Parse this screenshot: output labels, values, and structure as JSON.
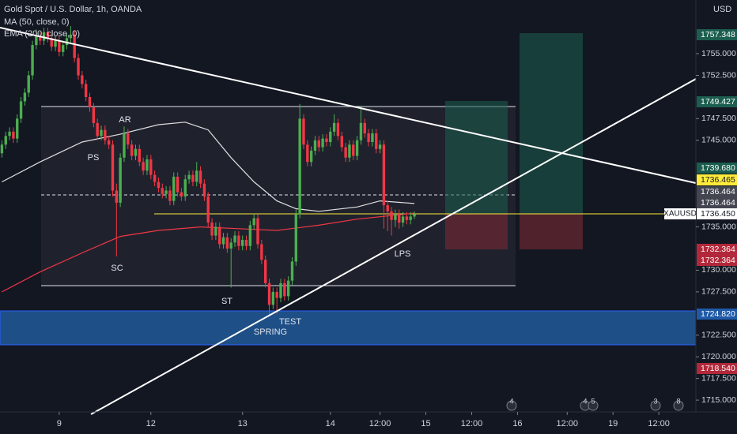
{
  "chart_data": {
    "type": "candlestick",
    "title": "Gold Spot / U.S. Dollar, 1h, OANDA",
    "indicators": [
      "MA (50, close, 0)",
      "EMA (200, close, 0)"
    ],
    "symbol_tag": "XAUUSD",
    "currency": "USD",
    "colors": {
      "up": "#4caf50",
      "down": "#f23645"
    },
    "candles": {
      "open": [
        1743.5,
        1744.5,
        1745.5,
        1746.0,
        1745.2,
        1747.5,
        1749.5,
        1750.5,
        1752.5,
        1756.0,
        1757.0,
        1756.5,
        1757.5,
        1756.8,
        1755.8,
        1756.5,
        1755.2,
        1756.0,
        1756.8,
        1757.2,
        1754.5,
        1752.5,
        1751.5,
        1750.0,
        1748.8,
        1747.0,
        1745.5,
        1746.2,
        1745.0,
        1744.5,
        1739.2,
        1737.8,
        1743.0,
        1745.8,
        1744.5,
        1743.2,
        1744.0,
        1742.5,
        1741.5,
        1742.8,
        1741.0,
        1740.2,
        1739.5,
        1738.8,
        1739.2,
        1738.0,
        1740.8,
        1739.0,
        1738.5,
        1740.5,
        1741.0,
        1740.2,
        1741.5,
        1740.0,
        1738.5,
        1735.5,
        1734.0,
        1735.0,
        1733.0,
        1733.8,
        1732.5,
        1733.2,
        1734.0,
        1732.8,
        1733.5,
        1732.8,
        1735.2,
        1736.0,
        1733.0,
        1731.2,
        1728.5,
        1726.0,
        1727.5,
        1726.8,
        1728.5,
        1727.0,
        1728.8,
        1731.0,
        1736.5,
        1747.5,
        1744.5,
        1742.5,
        1743.8,
        1745.0,
        1744.2,
        1745.2,
        1744.8,
        1746.0,
        1747.0,
        1745.5,
        1744.2,
        1743.0,
        1744.5,
        1743.2,
        1745.0,
        1747.0,
        1745.8,
        1744.8,
        1745.8,
        1744.0,
        1744.5,
        1737.5,
        1736.8,
        1735.8,
        1736.5,
        1735.5,
        1736.2,
        1735.8,
        1736.2
      ],
      "high": [
        1745.0,
        1746.0,
        1746.5,
        1746.5,
        1748.0,
        1750.0,
        1751.0,
        1753.0,
        1756.5,
        1757.8,
        1757.5,
        1758.0,
        1758.0,
        1757.3,
        1757.0,
        1757.0,
        1756.5,
        1757.3,
        1758.2,
        1757.7,
        1755.0,
        1753.0,
        1752.0,
        1750.5,
        1749.3,
        1747.5,
        1746.7,
        1746.7,
        1745.5,
        1745.0,
        1740.0,
        1743.5,
        1746.6,
        1746.3,
        1745.0,
        1744.5,
        1744.5,
        1743.0,
        1743.3,
        1743.3,
        1741.5,
        1740.7,
        1740.0,
        1739.7,
        1739.7,
        1741.3,
        1741.3,
        1739.5,
        1741.0,
        1741.5,
        1741.5,
        1742.5,
        1742.0,
        1740.5,
        1739.0,
        1736.0,
        1735.5,
        1735.5,
        1734.3,
        1734.3,
        1733.7,
        1734.5,
        1734.5,
        1734.0,
        1734.0,
        1735.7,
        1736.5,
        1736.5,
        1733.5,
        1731.7,
        1729.0,
        1728.0,
        1728.0,
        1729.0,
        1729.0,
        1729.3,
        1731.5,
        1737.0,
        1749.2,
        1748.0,
        1745.0,
        1744.3,
        1745.5,
        1745.5,
        1745.7,
        1745.7,
        1746.5,
        1748.0,
        1747.5,
        1746.0,
        1744.7,
        1745.0,
        1745.0,
        1745.5,
        1749.0,
        1747.5,
        1746.3,
        1746.3,
        1746.3,
        1745.0,
        1745.0,
        1738.0,
        1737.3,
        1737.0,
        1737.0,
        1736.7,
        1736.7,
        1736.7,
        1736.8
      ],
      "low": [
        1743.0,
        1744.0,
        1745.0,
        1744.7,
        1744.7,
        1747.0,
        1749.0,
        1750.0,
        1752.0,
        1755.5,
        1756.0,
        1756.0,
        1756.3,
        1755.3,
        1755.3,
        1754.7,
        1754.7,
        1755.5,
        1756.3,
        1754.0,
        1752.0,
        1751.0,
        1749.5,
        1748.3,
        1746.5,
        1745.0,
        1745.0,
        1744.5,
        1744.0,
        1738.5,
        1731.6,
        1737.3,
        1742.5,
        1744.0,
        1742.7,
        1742.7,
        1742.0,
        1741.0,
        1741.0,
        1740.5,
        1739.7,
        1739.0,
        1738.3,
        1738.3,
        1737.5,
        1737.5,
        1738.5,
        1738.0,
        1738.0,
        1740.0,
        1739.7,
        1739.7,
        1739.5,
        1738.0,
        1735.0,
        1733.5,
        1733.5,
        1732.5,
        1732.5,
        1732.0,
        1728.0,
        1732.7,
        1732.3,
        1732.3,
        1732.3,
        1732.3,
        1734.7,
        1732.5,
        1730.7,
        1728.0,
        1724.7,
        1725.5,
        1725.0,
        1726.3,
        1726.5,
        1726.5,
        1728.3,
        1730.5,
        1736.0,
        1744.0,
        1742.0,
        1742.0,
        1743.3,
        1743.7,
        1743.7,
        1744.3,
        1744.3,
        1745.5,
        1745.0,
        1743.7,
        1742.5,
        1742.5,
        1742.7,
        1742.7,
        1744.5,
        1745.3,
        1744.3,
        1744.3,
        1743.5,
        1743.5,
        1734.8,
        1734.5,
        1734.0,
        1735.0,
        1734.8,
        1735.0,
        1735.3,
        1735.3,
        1735.9
      ],
      "close": [
        1744.5,
        1745.5,
        1746.0,
        1745.2,
        1747.5,
        1749.5,
        1750.5,
        1752.5,
        1756.0,
        1757.0,
        1756.5,
        1757.5,
        1756.8,
        1755.8,
        1756.5,
        1755.2,
        1756.0,
        1756.8,
        1757.2,
        1754.5,
        1752.5,
        1751.5,
        1750.0,
        1748.8,
        1747.0,
        1745.5,
        1746.2,
        1745.0,
        1744.5,
        1739.2,
        1737.8,
        1743.0,
        1745.8,
        1744.5,
        1743.2,
        1744.0,
        1742.5,
        1741.5,
        1742.8,
        1741.0,
        1740.2,
        1739.5,
        1738.8,
        1739.2,
        1738.0,
        1740.8,
        1739.0,
        1738.5,
        1740.5,
        1741.0,
        1740.2,
        1741.5,
        1740.0,
        1738.5,
        1735.5,
        1734.0,
        1735.0,
        1733.0,
        1733.8,
        1732.5,
        1733.2,
        1734.0,
        1732.8,
        1733.5,
        1732.8,
        1735.2,
        1736.0,
        1733.0,
        1731.2,
        1728.5,
        1726.0,
        1727.5,
        1726.8,
        1728.5,
        1727.0,
        1728.8,
        1731.0,
        1736.5,
        1747.5,
        1744.5,
        1742.5,
        1743.8,
        1745.0,
        1744.2,
        1745.2,
        1744.8,
        1746.0,
        1747.0,
        1745.5,
        1744.2,
        1743.0,
        1744.5,
        1743.2,
        1745.0,
        1747.0,
        1745.8,
        1744.8,
        1745.8,
        1744.0,
        1744.5,
        1737.5,
        1736.8,
        1735.8,
        1736.5,
        1735.5,
        1736.2,
        1735.8,
        1736.2,
        1736.45
      ]
    },
    "series": [
      {
        "name": "MA (50, close, 0)",
        "color": "#e0e0e0",
        "x": [
          0,
          10,
          21,
          31,
          41,
          48,
          54,
          60,
          66,
          72,
          77,
          83,
          93,
          99,
          108
        ],
        "values": [
          1740.2,
          1742.5,
          1744.8,
          1745.7,
          1746.8,
          1747.1,
          1746.2,
          1743.0,
          1740.2,
          1738.0,
          1737.1,
          1736.8,
          1737.3,
          1738.0,
          1737.7
        ]
      },
      {
        "name": "EMA (200, close, 0)",
        "color": "#f23645",
        "x": [
          0,
          10,
          21,
          31,
          41,
          52,
          62,
          72,
          83,
          93,
          104,
          108
        ],
        "values": [
          1727.5,
          1729.8,
          1732.0,
          1733.9,
          1734.6,
          1735.0,
          1734.8,
          1734.6,
          1735.2,
          1735.9,
          1736.4,
          1736.6
        ]
      }
    ],
    "annotations": [
      "PS",
      "AR",
      "SC",
      "ST",
      "SPRING",
      "TEST",
      "LPS"
    ],
    "price_labels": [
      {
        "label": "1757.348",
        "color": "#1b5e4f"
      },
      {
        "label": "1749.427",
        "color": "#1b5e4f"
      },
      {
        "label": "1739.680",
        "color": "#1b5e4f"
      },
      {
        "label": "1736.465",
        "color": "#ffeb3b"
      },
      {
        "label": "1736.464",
        "color": "#434651"
      },
      {
        "label": "1736.464",
        "color": "#434651"
      },
      {
        "label": "1736.450",
        "color": "#ffffff"
      },
      {
        "label": "1732.364",
        "color": "#b2283a"
      },
      {
        "label": "1732.364",
        "color": "#b2283a"
      },
      {
        "label": "1724.820",
        "color": "#1e5aa8"
      },
      {
        "label": "1718.540",
        "color": "#b2283a"
      }
    ],
    "events": [
      "4",
      "4",
      "5",
      "3",
      "8"
    ],
    "xlim": [
      -0.5,
      181.7
    ],
    "ylim": [
      1713.64,
      1761.2
    ],
    "xticks": [
      {
        "value": 15,
        "label": "9"
      },
      {
        "value": 39,
        "label": "12"
      },
      {
        "value": 63,
        "label": "13"
      },
      {
        "value": 86,
        "label": "14"
      },
      {
        "value": 99,
        "label": "12:00"
      },
      {
        "value": 111,
        "label": "15"
      },
      {
        "value": 123,
        "label": "12:00"
      },
      {
        "value": 135,
        "label": "16"
      },
      {
        "value": 148,
        "label": "12:00"
      },
      {
        "value": 160,
        "label": "19"
      },
      {
        "value": 172,
        "label": "12:00"
      }
    ],
    "yticks": [
      {
        "value": 1755,
        "label": "1755.000"
      },
      {
        "value": 1752.5,
        "label": "1752.500"
      },
      {
        "value": 1747.5,
        "label": "1747.500"
      },
      {
        "value": 1745,
        "label": "1745.000"
      },
      {
        "value": 1735,
        "label": "1735.000"
      },
      {
        "value": 1730,
        "label": "1730.000"
      },
      {
        "value": 1727.5,
        "label": "1727.500"
      },
      {
        "value": 1722.5,
        "label": "1722.500"
      },
      {
        "value": 1720,
        "label": "1720.000"
      },
      {
        "value": 1717.5,
        "label": "1717.500"
      },
      {
        "value": 1715,
        "label": "1715.000"
      }
    ]
  }
}
